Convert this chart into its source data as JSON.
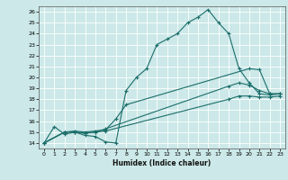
{
  "title": "",
  "xlabel": "Humidex (Indice chaleur)",
  "bg_color": "#cce8e8",
  "grid_color": "#ffffff",
  "line_color": "#1a6e6a",
  "xlim": [
    -0.5,
    23.5
  ],
  "ylim": [
    13.5,
    26.5
  ],
  "xticks": [
    0,
    1,
    2,
    3,
    4,
    5,
    6,
    7,
    8,
    9,
    10,
    11,
    12,
    13,
    14,
    15,
    16,
    17,
    18,
    19,
    20,
    21,
    22,
    23
  ],
  "yticks": [
    14,
    15,
    16,
    17,
    18,
    19,
    20,
    21,
    22,
    23,
    24,
    25,
    26
  ],
  "lines": [
    {
      "x": [
        0,
        1,
        2,
        3,
        4,
        5,
        6,
        7,
        8,
        9,
        10,
        11,
        12,
        13,
        14,
        15,
        16,
        17,
        18,
        19,
        20,
        21,
        22,
        23
      ],
      "y": [
        14,
        15.5,
        14.8,
        15.0,
        14.7,
        14.6,
        14.1,
        14.0,
        18.8,
        20.0,
        20.8,
        23.0,
        23.5,
        24.0,
        25.0,
        25.5,
        26.2,
        25.0,
        24.0,
        20.8,
        19.5,
        18.5,
        18.4,
        18.5
      ]
    },
    {
      "x": [
        0,
        2,
        3,
        4,
        5,
        6,
        7,
        8,
        20,
        21,
        22,
        23
      ],
      "y": [
        14,
        15.0,
        15.1,
        15.0,
        15.1,
        15.2,
        16.2,
        17.5,
        20.8,
        20.7,
        18.5,
        18.5
      ]
    },
    {
      "x": [
        0,
        2,
        3,
        4,
        5,
        6,
        18,
        19,
        20,
        21,
        22,
        23
      ],
      "y": [
        14,
        15.0,
        15.0,
        14.9,
        15.0,
        15.3,
        19.2,
        19.5,
        19.3,
        18.8,
        18.5,
        18.5
      ]
    },
    {
      "x": [
        0,
        2,
        3,
        4,
        5,
        6,
        18,
        19,
        20,
        21,
        22,
        23
      ],
      "y": [
        14,
        15.0,
        15.0,
        14.9,
        15.0,
        15.1,
        18.0,
        18.3,
        18.3,
        18.2,
        18.2,
        18.3
      ]
    }
  ]
}
